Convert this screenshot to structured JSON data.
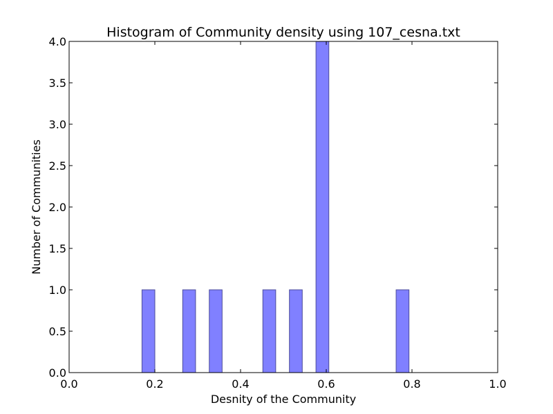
{
  "chart_data": {
    "type": "bar",
    "title": "Histogram of Community density using 107_cesna.txt",
    "xlabel": "Desnity of the Community",
    "ylabel": "Number of Communities",
    "xlim": [
      0.0,
      1.0
    ],
    "ylim": [
      0.0,
      4.0
    ],
    "grid": false,
    "bar_color": "#8080ff",
    "bar_edge_color": "#4d4d99",
    "x_tick_labels": [
      "0.0",
      "0.2",
      "0.4",
      "0.6",
      "0.8",
      "1.0"
    ],
    "y_tick_labels": [
      "0.0",
      "0.5",
      "1.0",
      "1.5",
      "2.0",
      "2.5",
      "3.0",
      "3.5",
      "4.0"
    ],
    "bins": [
      {
        "x0": 0.17,
        "x1": 0.2,
        "count": 1
      },
      {
        "x0": 0.265,
        "x1": 0.295,
        "count": 1
      },
      {
        "x0": 0.327,
        "x1": 0.357,
        "count": 1
      },
      {
        "x0": 0.452,
        "x1": 0.482,
        "count": 1
      },
      {
        "x0": 0.514,
        "x1": 0.544,
        "count": 1
      },
      {
        "x0": 0.576,
        "x1": 0.606,
        "count": 4
      },
      {
        "x0": 0.763,
        "x1": 0.793,
        "count": 1
      }
    ]
  }
}
